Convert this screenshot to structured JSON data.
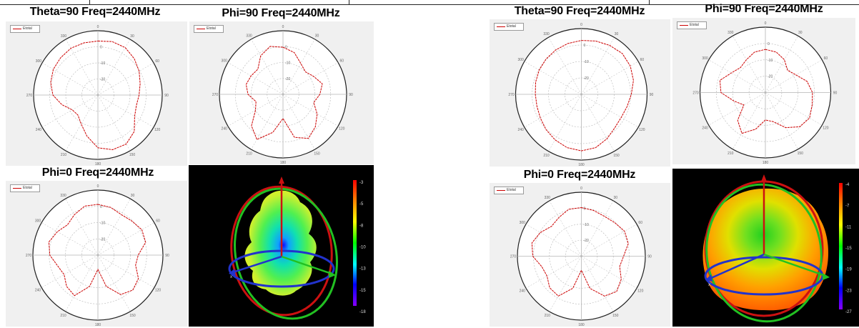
{
  "titles": {
    "left_theta": "Theta=90 Freq=2440MHz",
    "left_phi90": "Phi=90 Freq=2440MHz",
    "left_phi0": "Phi=0 Freq=2440MHz",
    "right_theta": "Theta=90 Freq=2440MHz",
    "right_phi90": "Phi=90 Freq=2440MHz",
    "right_phi0": "Phi=0 Freq=2440MHz"
  },
  "legend": {
    "label": "Etotal"
  },
  "colors": {
    "trace": "#cc0000",
    "grid": "#b4b4b4",
    "panel": "#f0f0f0"
  },
  "colorbars": {
    "left": [
      "-3",
      "-5",
      "-8",
      "-10",
      "-13",
      "-15",
      "-18"
    ],
    "right": [
      "-4",
      "-7",
      "-11",
      "-15",
      "-19",
      "-23",
      "-27"
    ]
  },
  "chart_data": [
    {
      "type": "polar",
      "id": "left_theta",
      "angle_labels": [
        "0",
        "30",
        "60",
        "90",
        "120",
        "150",
        "180",
        "210",
        "240",
        "270",
        "300",
        "330"
      ],
      "radial_labels": [
        "0",
        "-10",
        "-20"
      ],
      "r": [
        0.84,
        0.86,
        0.85,
        0.8,
        0.74,
        0.68,
        0.64,
        0.62,
        0.66,
        0.8,
        0.88,
        0.88,
        0.82,
        0.66,
        0.52,
        0.44,
        0.46,
        0.58,
        0.7,
        0.76,
        0.8,
        0.82,
        0.84,
        0.84
      ]
    },
    {
      "type": "polar",
      "id": "left_phi90",
      "angle_labels": [
        "0",
        "30",
        "60",
        "90",
        "120",
        "150",
        "180",
        "210",
        "240",
        "270",
        "300",
        "330"
      ],
      "radial_labels": [
        "0",
        "-10",
        "-20"
      ],
      "r": [
        0.74,
        0.68,
        0.56,
        0.5,
        0.56,
        0.64,
        0.58,
        0.5,
        0.62,
        0.72,
        0.8,
        0.7,
        0.38,
        0.62,
        0.82,
        0.7,
        0.5,
        0.44,
        0.55,
        0.6,
        0.58,
        0.56,
        0.7,
        0.78
      ]
    },
    {
      "type": "polar",
      "id": "left_phi0",
      "angle_labels": [
        "0",
        "30",
        "60",
        "90",
        "120",
        "150",
        "180",
        "210",
        "240",
        "270",
        "300",
        "330"
      ],
      "radial_labels": [
        "0",
        "-10",
        "-20"
      ],
      "r": [
        0.78,
        0.76,
        0.72,
        0.74,
        0.78,
        0.76,
        0.62,
        0.6,
        0.72,
        0.76,
        0.7,
        0.5,
        0.22,
        0.5,
        0.72,
        0.68,
        0.6,
        0.64,
        0.74,
        0.78,
        0.72,
        0.66,
        0.72,
        0.78
      ]
    },
    {
      "type": "polar",
      "id": "right_theta",
      "angle_labels": [
        "0",
        "30",
        "60",
        "90",
        "120",
        "150",
        "180",
        "210",
        "240",
        "270",
        "300",
        "330"
      ],
      "radial_labels": [
        "0",
        "-10",
        "-20"
      ],
      "r": [
        0.82,
        0.84,
        0.86,
        0.88,
        0.86,
        0.82,
        0.76,
        0.72,
        0.7,
        0.72,
        0.78,
        0.84,
        0.86,
        0.84,
        0.8,
        0.76,
        0.72,
        0.7,
        0.7,
        0.72,
        0.74,
        0.76,
        0.78,
        0.8
      ]
    },
    {
      "type": "polar",
      "id": "right_phi90",
      "angle_labels": [
        "0",
        "30",
        "60",
        "90",
        "120",
        "150",
        "180",
        "210",
        "240",
        "270",
        "300",
        "330"
      ],
      "radial_labels": [
        "0",
        "-10",
        "-20"
      ],
      "r": [
        0.66,
        0.64,
        0.58,
        0.48,
        0.54,
        0.66,
        0.72,
        0.74,
        0.78,
        0.74,
        0.62,
        0.46,
        0.42,
        0.58,
        0.72,
        0.6,
        0.38,
        0.5,
        0.68,
        0.72,
        0.6,
        0.54,
        0.58,
        0.64
      ]
    },
    {
      "type": "polar",
      "id": "right_phi0",
      "angle_labels": [
        "0",
        "30",
        "60",
        "90",
        "120",
        "150",
        "180",
        "210",
        "240",
        "270",
        "300",
        "330"
      ],
      "radial_labels": [
        "0",
        "-10",
        "-20"
      ],
      "r": [
        0.76,
        0.74,
        0.72,
        0.74,
        0.78,
        0.76,
        0.66,
        0.62,
        0.72,
        0.78,
        0.72,
        0.52,
        0.22,
        0.52,
        0.72,
        0.7,
        0.62,
        0.64,
        0.76,
        0.8,
        0.74,
        0.66,
        0.7,
        0.76
      ]
    }
  ]
}
